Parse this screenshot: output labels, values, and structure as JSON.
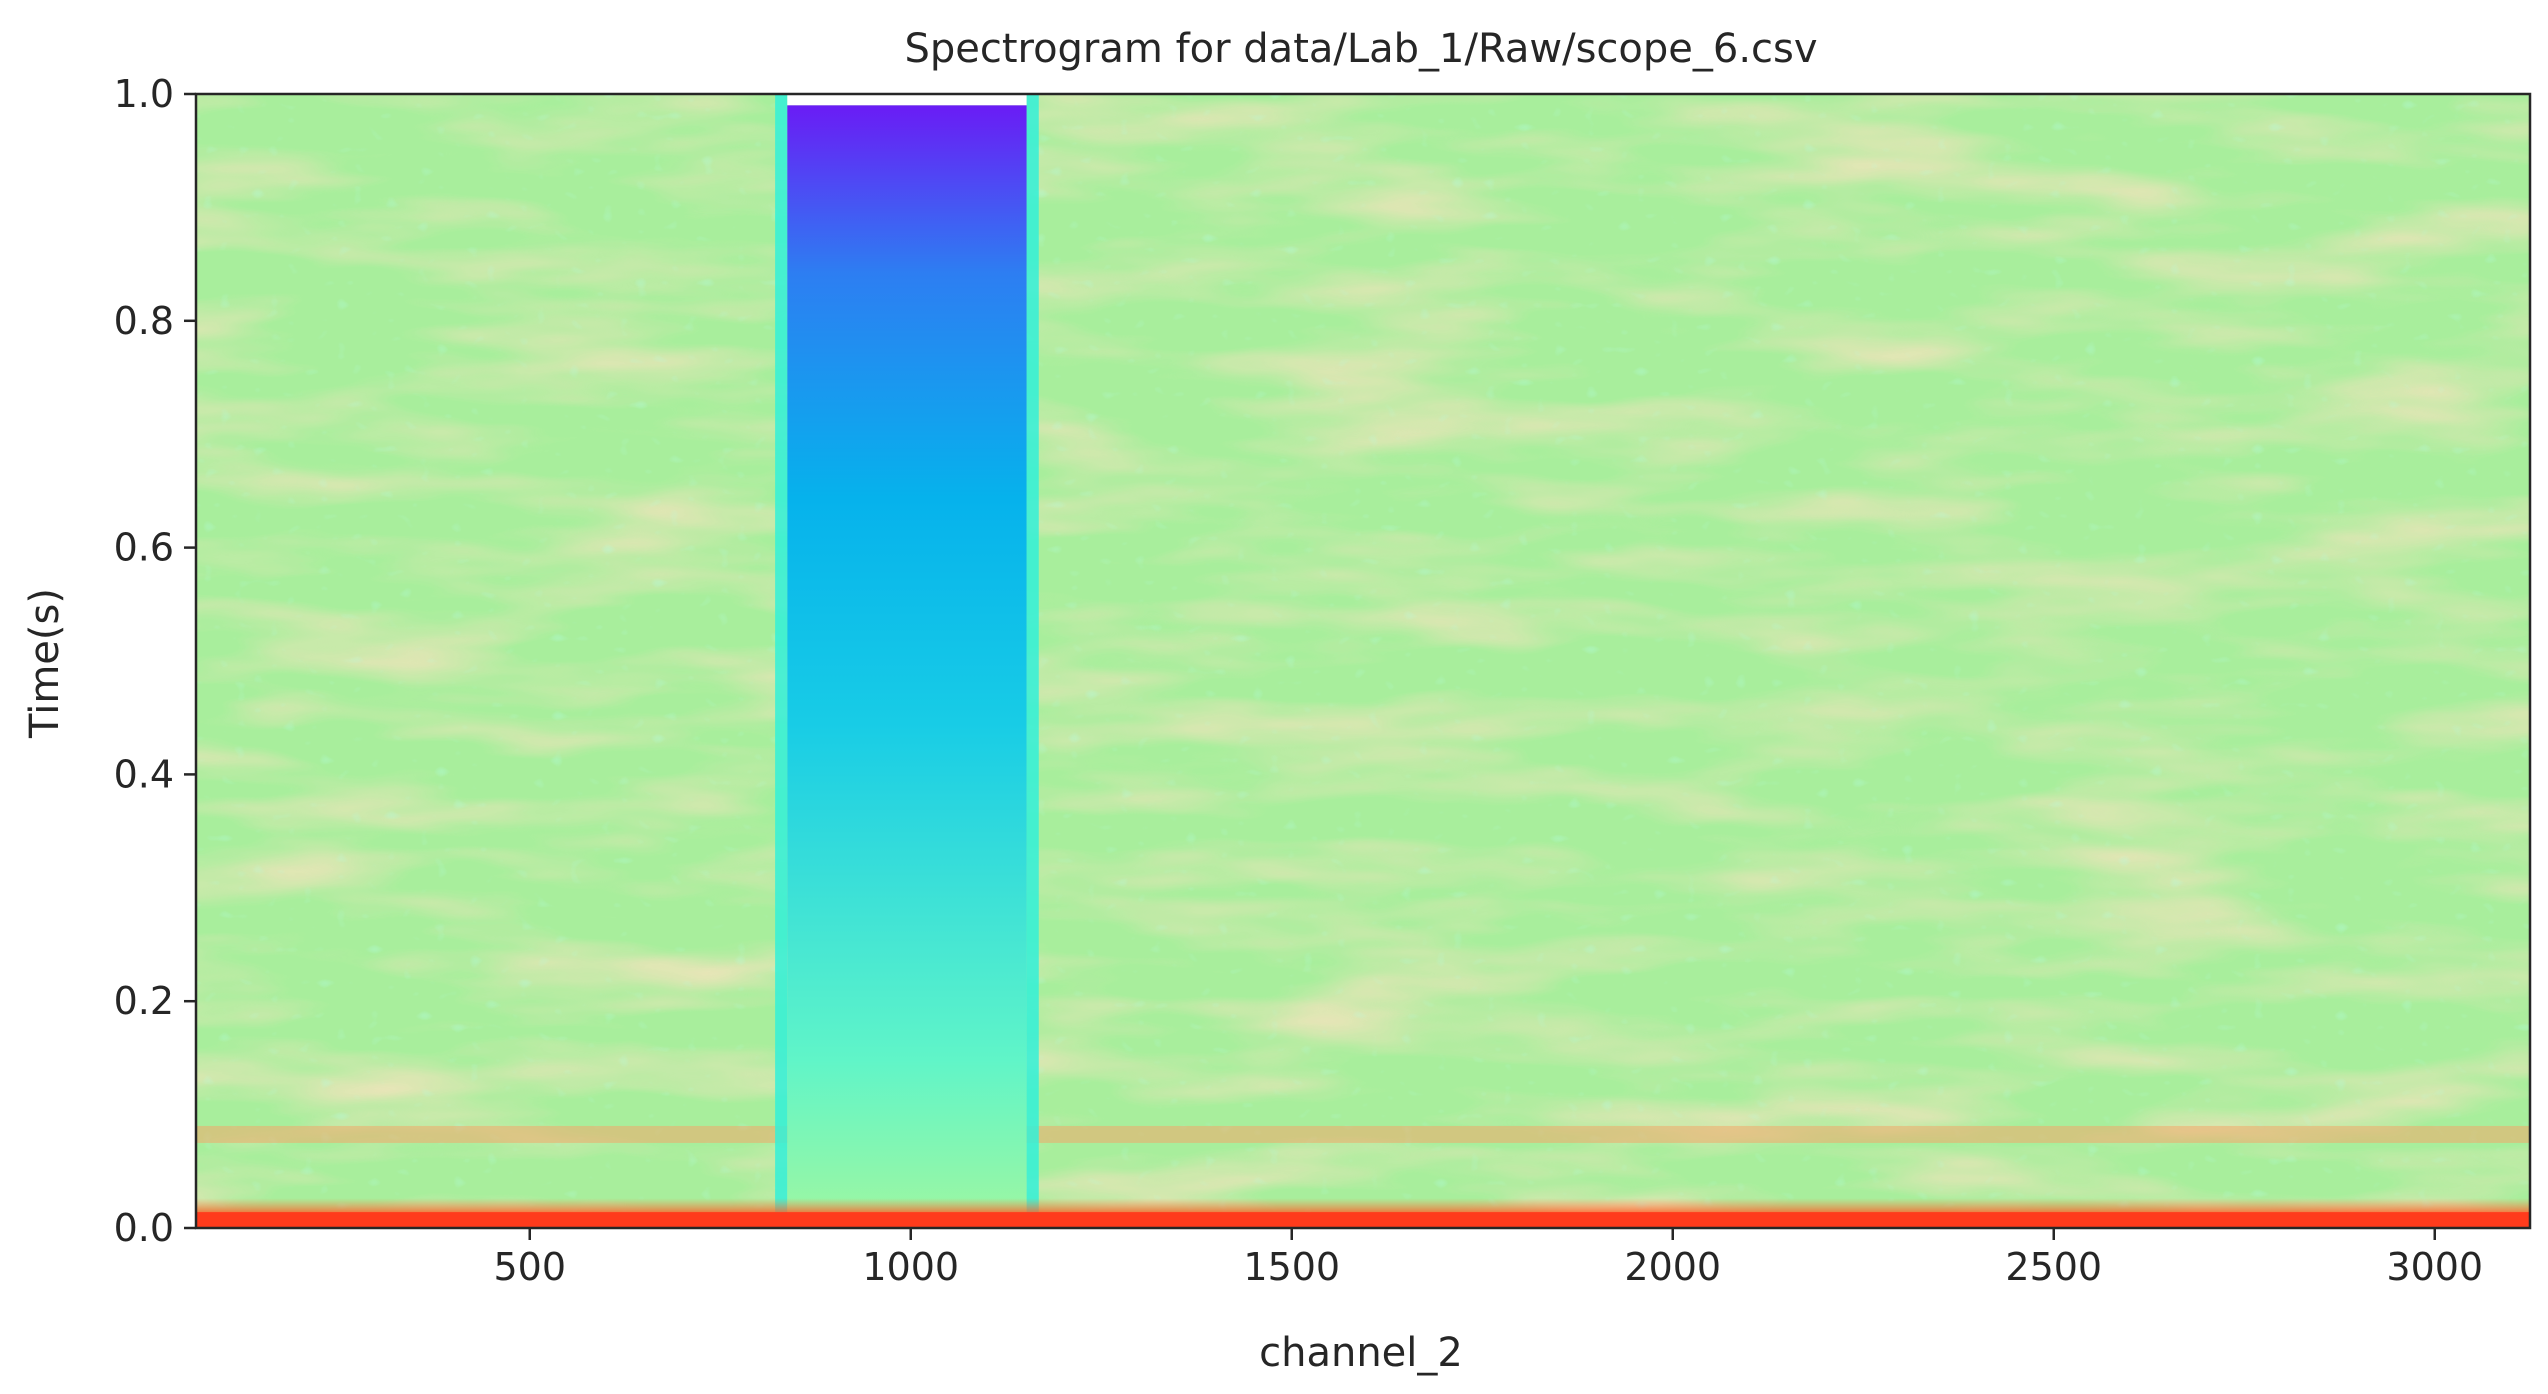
{
  "chart_data": {
    "type": "heatmap",
    "title": "Spectrogram for data/Lab_1/Raw/scope_6.csv",
    "xlabel": "channel_2",
    "ylabel": "Time(s)",
    "xlim": [
      62,
      3125
    ],
    "ylim": [
      0,
      1
    ],
    "xticks": [
      500,
      1000,
      1500,
      2000,
      2500,
      3000
    ],
    "yticks": [
      0.0,
      0.2,
      0.4,
      0.6,
      0.8,
      1.0
    ],
    "xtick_labels": [
      "500",
      "1000",
      "1500",
      "2000",
      "2500",
      "3000"
    ],
    "ytick_labels": [
      "0.0",
      "0.2",
      "0.4",
      "0.6",
      "0.8",
      "1.0"
    ],
    "colormap": "rainbow",
    "grid": false,
    "regions": [
      {
        "name": "background",
        "x": [
          62,
          3125
        ],
        "y": [
          0,
          1
        ],
        "colors": [
          "#a8ee9c",
          "#e8c482"
        ]
      },
      {
        "name": "bright-band",
        "x": [
          838,
          1152
        ],
        "y": [
          0,
          0.99
        ],
        "gradient_from": "#9ff7a3",
        "gradient_to": "#6a1cf5"
      },
      {
        "name": "transition-edges",
        "x": [
          [
            822,
            838
          ],
          [
            1152,
            1168
          ]
        ],
        "color": "#33f0d8"
      },
      {
        "name": "bottom-hot-row",
        "x": [
          62,
          3125
        ],
        "y": [
          0,
          0.014
        ],
        "color": "#ff3b1c"
      },
      {
        "name": "warm-stripe",
        "x": [
          62,
          3125
        ],
        "y": [
          0.075,
          0.09
        ],
        "color": "#f2a86a"
      }
    ]
  }
}
